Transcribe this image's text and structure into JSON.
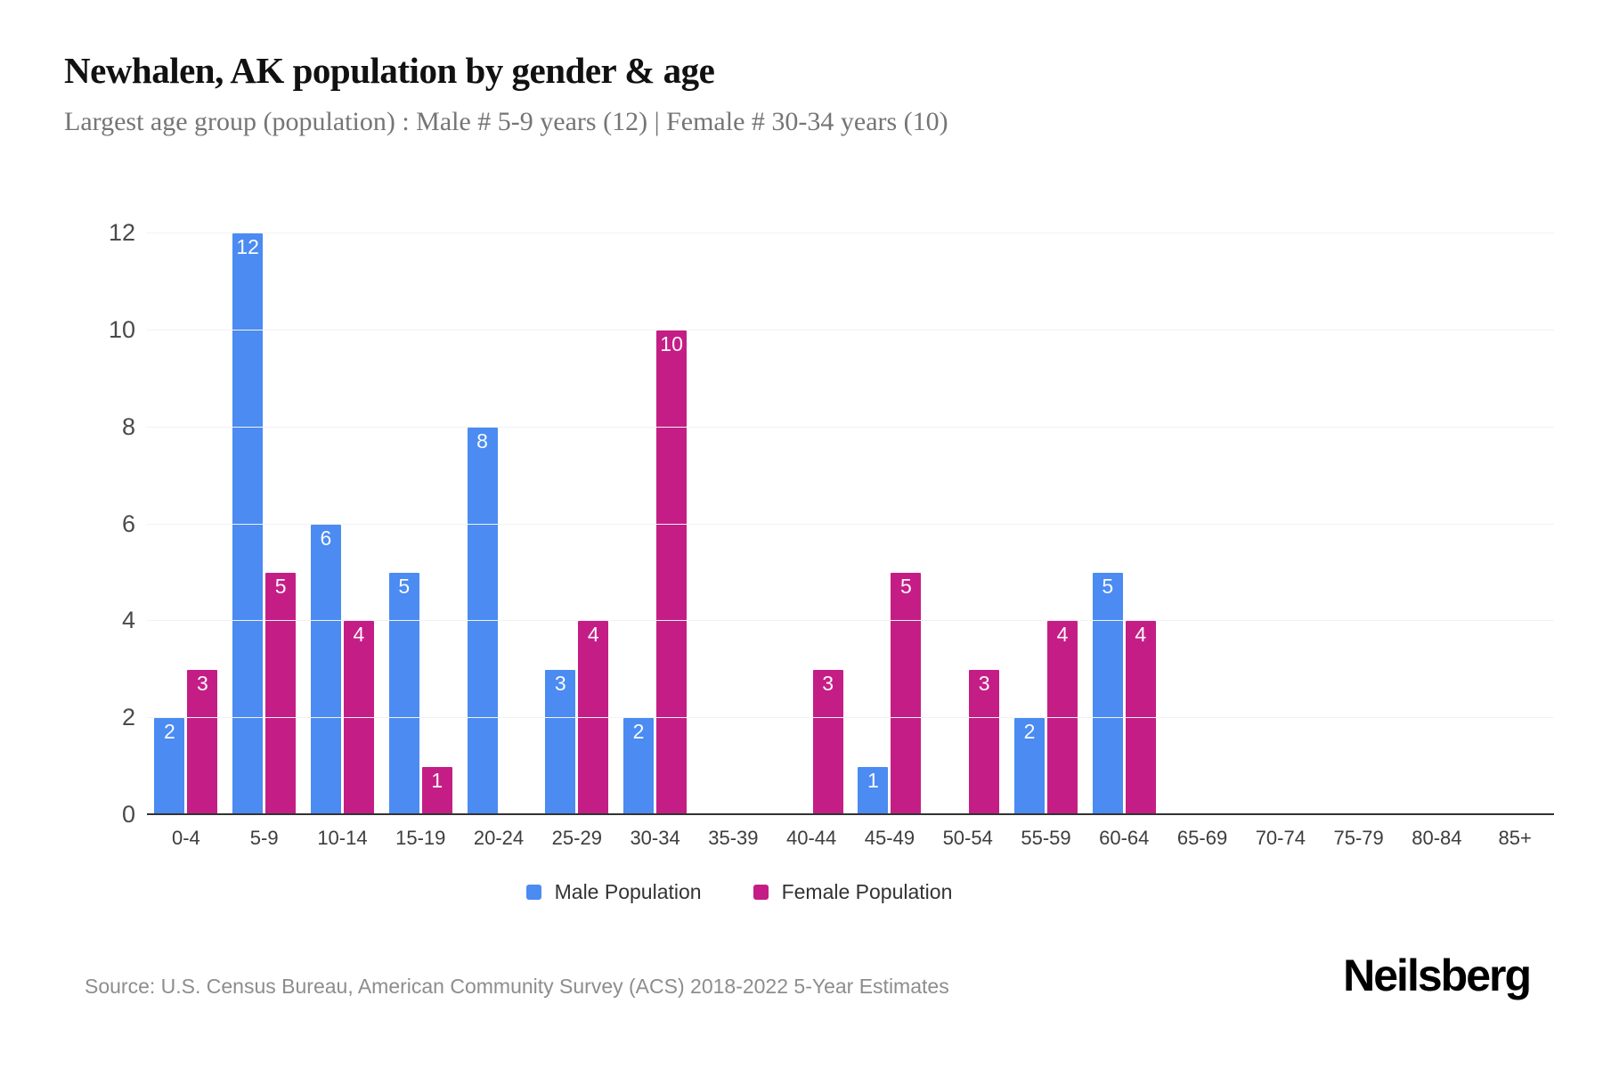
{
  "header": {
    "title": "Newhalen, AK population by gender & age",
    "subtitle": "Largest age group (population) : Male # 5-9 years (12) | Female # 30-34 years (10)"
  },
  "chart_data": {
    "type": "bar",
    "title": "Newhalen, AK population by gender & age",
    "categories": [
      "0-4",
      "5-9",
      "10-14",
      "15-19",
      "20-24",
      "25-29",
      "30-34",
      "35-39",
      "40-44",
      "45-49",
      "50-54",
      "55-59",
      "60-64",
      "65-69",
      "70-74",
      "75-79",
      "80-84",
      "85+"
    ],
    "series": [
      {
        "name": "Male Population",
        "color": "#4B8BF2",
        "values": [
          2,
          12,
          6,
          5,
          8,
          3,
          2,
          0,
          0,
          1,
          0,
          2,
          5,
          0,
          0,
          0,
          0,
          0
        ]
      },
      {
        "name": "Female Population",
        "color": "#C41E86",
        "values": [
          3,
          5,
          4,
          1,
          0,
          4,
          10,
          0,
          3,
          5,
          3,
          4,
          4,
          0,
          0,
          0,
          0,
          0
        ]
      }
    ],
    "xlabel": "",
    "ylabel": "",
    "ylim": [
      0,
      12
    ],
    "yticks": [
      0,
      2,
      4,
      6,
      8,
      10,
      12
    ],
    "grid": "horizontal-light",
    "legend_position": "bottom-center",
    "value_labels": "inside-top white, omitted when value is 0"
  },
  "footer": {
    "source": "Source: U.S. Census Bureau, American Community Survey (ACS) 2018-2022 5-Year Estimates",
    "brand": "Neilsberg"
  },
  "colors": {
    "male": "#4B8BF2",
    "female": "#C41E86",
    "grid": "#f2f2f2",
    "axis": "#333333",
    "title": "#111111",
    "subtitle": "#757575",
    "tick_text": "#4a4a4a",
    "source_text": "#8d8d8d",
    "background": "#ffffff"
  }
}
